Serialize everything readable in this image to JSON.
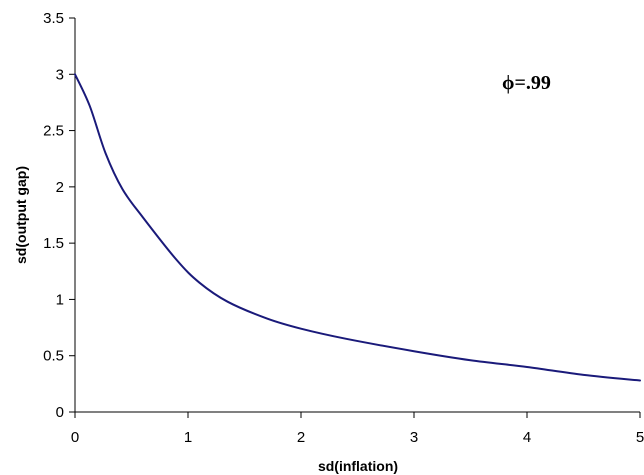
{
  "chart_data": {
    "type": "line",
    "title": "",
    "xlabel": "sd(inflation)",
    "ylabel": "sd(output gap)",
    "xlim": [
      0,
      5
    ],
    "ylim": [
      0,
      3.5
    ],
    "x_ticks": [
      "0",
      "1",
      "2",
      "3",
      "4",
      "5"
    ],
    "y_ticks": [
      "0",
      "0.5",
      "1",
      "1.5",
      "2",
      "2.5",
      "3",
      "3.5"
    ],
    "grid": false,
    "legend": "none",
    "annotation": "ϕ=.99",
    "series": [
      {
        "color": "#1a1a7a",
        "x": [
          0,
          0.13,
          0.27,
          0.42,
          0.6,
          0.9,
          1.1,
          1.35,
          1.7,
          2.0,
          2.4,
          3.0,
          3.5,
          4.0,
          4.5,
          5.0
        ],
        "y": [
          3.0,
          2.72,
          2.3,
          1.98,
          1.73,
          1.35,
          1.15,
          0.98,
          0.83,
          0.74,
          0.65,
          0.54,
          0.46,
          0.4,
          0.33,
          0.28
        ]
      }
    ]
  }
}
